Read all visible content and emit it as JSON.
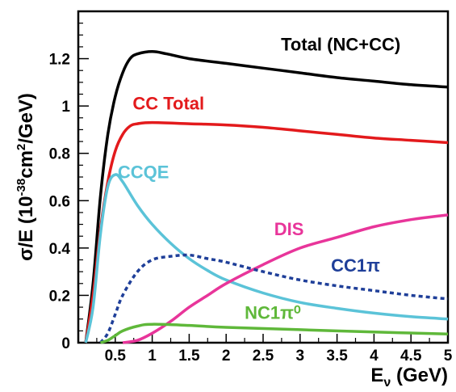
{
  "chart_data": {
    "type": "line",
    "xlabel": "E",
    "xlabel_sub": "ν",
    "xlabel_unit": " (GeV)",
    "ylabel_pre": "σ/E (10",
    "ylabel_sup1": "-38",
    "ylabel_mid": "cm",
    "ylabel_sup2": "2",
    "ylabel_post": "/GeV)",
    "xlim": [
      0,
      5
    ],
    "ylim": [
      0,
      1.4
    ],
    "x_ticks": [
      0.5,
      1,
      1.5,
      2,
      2.5,
      3,
      3.5,
      4,
      4.5,
      5
    ],
    "x_tick_labels": [
      "0.5",
      "1",
      "1.5",
      "2",
      "2.5",
      "3",
      "3.5",
      "4",
      "4.5",
      "5"
    ],
    "y_ticks": [
      0,
      0.2,
      0.4,
      0.6,
      0.8,
      1,
      1.2
    ],
    "y_tick_labels": [
      "0",
      "0.2",
      "0.4",
      "0.6",
      "0.8",
      "1",
      "1.2"
    ],
    "grid": false,
    "series": [
      {
        "name": "Total (NC+CC)",
        "color": "#000000",
        "dash": "solid",
        "points": [
          [
            0.1,
            0.0
          ],
          [
            0.2,
            0.25
          ],
          [
            0.3,
            0.62
          ],
          [
            0.4,
            0.88
          ],
          [
            0.5,
            1.04
          ],
          [
            0.6,
            1.14
          ],
          [
            0.7,
            1.2
          ],
          [
            0.8,
            1.22
          ],
          [
            1.0,
            1.23
          ],
          [
            1.2,
            1.22
          ],
          [
            1.5,
            1.2
          ],
          [
            2.0,
            1.18
          ],
          [
            2.5,
            1.16
          ],
          [
            3.0,
            1.14
          ],
          [
            3.5,
            1.12
          ],
          [
            4.0,
            1.105
          ],
          [
            4.5,
            1.09
          ],
          [
            5.0,
            1.08
          ]
        ]
      },
      {
        "name": "CC Total",
        "color": "#e31a1c",
        "dash": "solid",
        "points": [
          [
            0.1,
            0.0
          ],
          [
            0.2,
            0.2
          ],
          [
            0.3,
            0.48
          ],
          [
            0.4,
            0.68
          ],
          [
            0.5,
            0.81
          ],
          [
            0.6,
            0.88
          ],
          [
            0.7,
            0.915
          ],
          [
            0.8,
            0.925
          ],
          [
            1.0,
            0.93
          ],
          [
            1.5,
            0.925
          ],
          [
            2.0,
            0.92
          ],
          [
            2.5,
            0.91
          ],
          [
            3.0,
            0.895
          ],
          [
            3.5,
            0.88
          ],
          [
            4.0,
            0.865
          ],
          [
            4.5,
            0.855
          ],
          [
            5.0,
            0.845
          ]
        ]
      },
      {
        "name": "CCQE",
        "color": "#5bc3d8",
        "dash": "solid",
        "points": [
          [
            0.1,
            0.0
          ],
          [
            0.2,
            0.15
          ],
          [
            0.3,
            0.46
          ],
          [
            0.4,
            0.66
          ],
          [
            0.5,
            0.71
          ],
          [
            0.6,
            0.68
          ],
          [
            0.8,
            0.58
          ],
          [
            1.0,
            0.5
          ],
          [
            1.25,
            0.42
          ],
          [
            1.5,
            0.355
          ],
          [
            1.75,
            0.305
          ],
          [
            2.0,
            0.265
          ],
          [
            2.5,
            0.21
          ],
          [
            3.0,
            0.17
          ],
          [
            3.5,
            0.145
          ],
          [
            4.0,
            0.125
          ],
          [
            4.5,
            0.11
          ],
          [
            5.0,
            0.1
          ]
        ]
      },
      {
        "name": "DIS",
        "color": "#e8359a",
        "dash": "solid",
        "points": [
          [
            0.6,
            0.0
          ],
          [
            0.8,
            0.01
          ],
          [
            1.0,
            0.04
          ],
          [
            1.25,
            0.09
          ],
          [
            1.5,
            0.15
          ],
          [
            1.75,
            0.2
          ],
          [
            2.0,
            0.25
          ],
          [
            2.5,
            0.33
          ],
          [
            3.0,
            0.4
          ],
          [
            3.5,
            0.445
          ],
          [
            4.0,
            0.49
          ],
          [
            4.5,
            0.52
          ],
          [
            5.0,
            0.54
          ]
        ]
      },
      {
        "name": "CC1π",
        "color": "#1f3f99",
        "dash": "dashed",
        "points": [
          [
            0.3,
            0.0
          ],
          [
            0.4,
            0.04
          ],
          [
            0.5,
            0.12
          ],
          [
            0.6,
            0.2
          ],
          [
            0.8,
            0.3
          ],
          [
            1.0,
            0.35
          ],
          [
            1.25,
            0.365
          ],
          [
            1.5,
            0.37
          ],
          [
            1.75,
            0.355
          ],
          [
            2.0,
            0.34
          ],
          [
            2.5,
            0.3
          ],
          [
            3.0,
            0.265
          ],
          [
            3.5,
            0.24
          ],
          [
            4.0,
            0.22
          ],
          [
            4.5,
            0.2
          ],
          [
            5.0,
            0.185
          ]
        ]
      },
      {
        "name": "NC1π⁰",
        "color": "#5fb83a",
        "dash": "solid",
        "points": [
          [
            0.3,
            0.0
          ],
          [
            0.4,
            0.01
          ],
          [
            0.5,
            0.03
          ],
          [
            0.6,
            0.05
          ],
          [
            0.8,
            0.07
          ],
          [
            1.0,
            0.078
          ],
          [
            1.5,
            0.073
          ],
          [
            2.0,
            0.065
          ],
          [
            3.0,
            0.055
          ],
          [
            4.0,
            0.045
          ],
          [
            5.0,
            0.037
          ]
        ]
      }
    ],
    "labels": [
      {
        "text": "Total (NC+CC)",
        "x": 3.55,
        "y": 1.235,
        "color": "#000000"
      },
      {
        "text": "CC Total",
        "x": 1.22,
        "y": 0.985,
        "color": "#e31a1c"
      },
      {
        "text": "CCQE",
        "x": 0.88,
        "y": 0.695,
        "color": "#5bc3d8"
      },
      {
        "text": "DIS",
        "x": 2.85,
        "y": 0.455,
        "color": "#e8359a"
      },
      {
        "text": "CC1π",
        "x": 3.75,
        "y": 0.3,
        "color": "#1f3f99"
      },
      {
        "text": "NC1π⁰",
        "x": 2.63,
        "y": 0.1,
        "color": "#5fb83a"
      }
    ]
  }
}
